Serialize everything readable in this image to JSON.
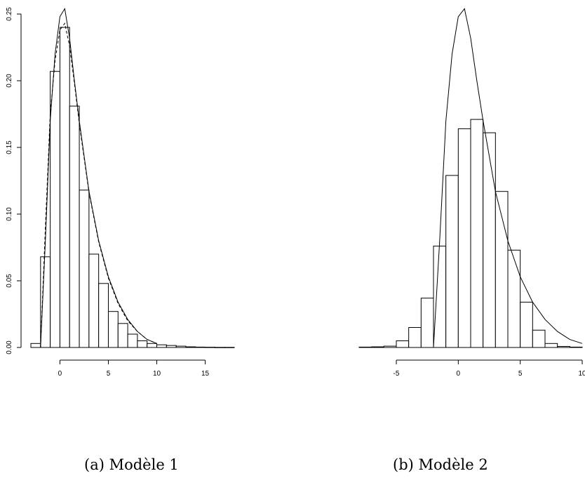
{
  "captions": {
    "a": "(a) Modèle 1",
    "b": "(b) Modèle 2"
  },
  "chart_data": [
    {
      "type": "histogram",
      "caption": "(a) Modèle 1",
      "title": "",
      "xlabel": "",
      "ylabel": "",
      "xlim": [
        -3,
        18
      ],
      "ylim": [
        0,
        0.25
      ],
      "yticks": [
        "0.00",
        "0.05",
        "0.10",
        "0.15",
        "0.20",
        "0.25"
      ],
      "xticks": [
        "0",
        "5",
        "10",
        "15"
      ],
      "bin_width": 1,
      "bins": [
        {
          "x0": -3,
          "x1": -2,
          "density": 0.003
        },
        {
          "x0": -2,
          "x1": -1,
          "density": 0.068
        },
        {
          "x0": -1,
          "x1": 0,
          "density": 0.207
        },
        {
          "x0": 0,
          "x1": 1,
          "density": 0.24
        },
        {
          "x0": 1,
          "x1": 2,
          "density": 0.181
        },
        {
          "x0": 2,
          "x1": 3,
          "density": 0.118
        },
        {
          "x0": 3,
          "x1": 4,
          "density": 0.07
        },
        {
          "x0": 4,
          "x1": 5,
          "density": 0.048
        },
        {
          "x0": 5,
          "x1": 6,
          "density": 0.027
        },
        {
          "x0": 6,
          "x1": 7,
          "density": 0.018
        },
        {
          "x0": 7,
          "x1": 8,
          "density": 0.01
        },
        {
          "x0": 8,
          "x1": 9,
          "density": 0.005
        },
        {
          "x0": 9,
          "x1": 10,
          "density": 0.003
        },
        {
          "x0": 10,
          "x1": 11,
          "density": 0.002
        },
        {
          "x0": 11,
          "x1": 12,
          "density": 0.0015
        },
        {
          "x0": 12,
          "x1": 13,
          "density": 0.001
        },
        {
          "x0": 13,
          "x1": 14,
          "density": 0.0005
        },
        {
          "x0": 14,
          "x1": 15,
          "density": 0.0003
        },
        {
          "x0": 15,
          "x1": 16,
          "density": 0.0002
        },
        {
          "x0": 16,
          "x1": 17,
          "density": 0.0001
        },
        {
          "x0": 17,
          "x1": 18,
          "density": 0.0001
        }
      ],
      "series": [
        {
          "style": "solid",
          "x": [
            -2,
            -1.5,
            -1,
            -0.5,
            0,
            0.5,
            1,
            1.5,
            2,
            3,
            4,
            5,
            6,
            7,
            8,
            9,
            10
          ],
          "y": [
            0.0,
            0.08,
            0.17,
            0.22,
            0.248,
            0.254,
            0.232,
            0.2,
            0.17,
            0.117,
            0.08,
            0.053,
            0.034,
            0.021,
            0.012,
            0.006,
            0.003
          ]
        },
        {
          "style": "dashed",
          "x": [
            -2,
            -1.5,
            -1,
            -0.5,
            0,
            0.5,
            1,
            1.5,
            2,
            3,
            4,
            5,
            6,
            7,
            8,
            9,
            10
          ],
          "y": [
            0.0,
            0.09,
            0.175,
            0.215,
            0.238,
            0.243,
            0.226,
            0.198,
            0.168,
            0.116,
            0.079,
            0.052,
            0.033,
            0.02,
            0.012,
            0.006,
            0.003
          ]
        }
      ]
    },
    {
      "type": "histogram",
      "caption": "(b) Modèle 2",
      "title": "",
      "xlabel": "",
      "ylabel": "",
      "xlim": [
        -8,
        10
      ],
      "ylim": [
        0,
        0.25
      ],
      "xticks": [
        "-5",
        "0",
        "5",
        "10"
      ],
      "bin_width": 1,
      "bins": [
        {
          "x0": -8,
          "x1": -7,
          "density": 0.0003
        },
        {
          "x0": -7,
          "x1": -6,
          "density": 0.0005
        },
        {
          "x0": -6,
          "x1": -5,
          "density": 0.001
        },
        {
          "x0": -5,
          "x1": -4,
          "density": 0.005
        },
        {
          "x0": -4,
          "x1": -3,
          "density": 0.015
        },
        {
          "x0": -3,
          "x1": -2,
          "density": 0.037
        },
        {
          "x0": -2,
          "x1": -1,
          "density": 0.076
        },
        {
          "x0": -1,
          "x1": 0,
          "density": 0.129
        },
        {
          "x0": 0,
          "x1": 1,
          "density": 0.164
        },
        {
          "x0": 1,
          "x1": 2,
          "density": 0.171
        },
        {
          "x0": 2,
          "x1": 3,
          "density": 0.161
        },
        {
          "x0": 3,
          "x1": 4,
          "density": 0.117
        },
        {
          "x0": 4,
          "x1": 5,
          "density": 0.073
        },
        {
          "x0": 5,
          "x1": 6,
          "density": 0.034
        },
        {
          "x0": 6,
          "x1": 7,
          "density": 0.013
        },
        {
          "x0": 7,
          "x1": 8,
          "density": 0.003
        },
        {
          "x0": 8,
          "x1": 9,
          "density": 0.0008
        },
        {
          "x0": 9,
          "x1": 10,
          "density": 0.0003
        }
      ],
      "series": [
        {
          "style": "solid",
          "x": [
            -2,
            -1.5,
            -1,
            -0.5,
            0,
            0.5,
            1,
            1.5,
            2,
            3,
            4,
            5,
            6,
            7,
            8,
            9,
            10
          ],
          "y": [
            0.0,
            0.08,
            0.17,
            0.22,
            0.248,
            0.254,
            0.232,
            0.2,
            0.17,
            0.117,
            0.08,
            0.053,
            0.034,
            0.021,
            0.012,
            0.006,
            0.003
          ]
        }
      ]
    }
  ]
}
